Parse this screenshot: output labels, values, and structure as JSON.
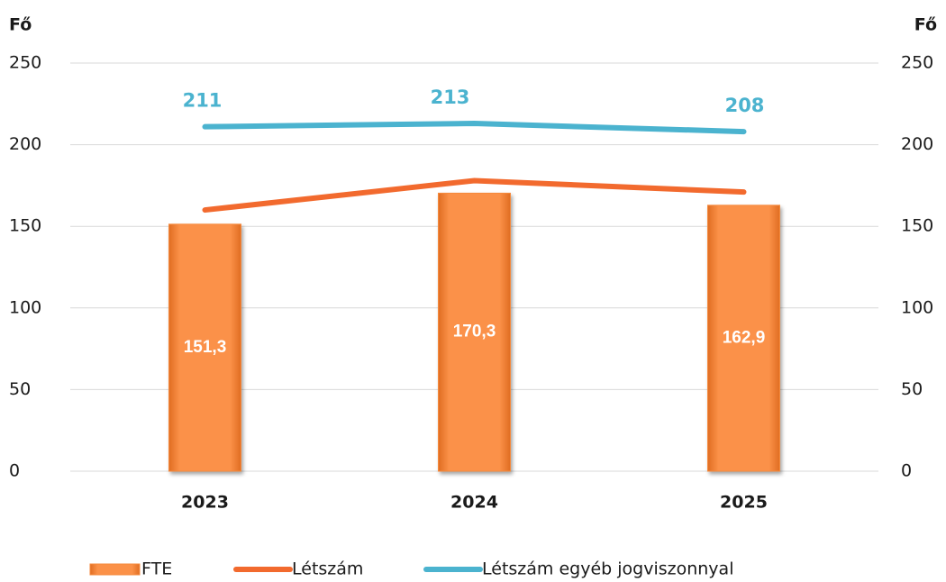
{
  "chart_data": {
    "type": "bar",
    "y_label": "Fő",
    "y2_label": "Fő",
    "categories": [
      "2023",
      "2024",
      "2025"
    ],
    "series": [
      {
        "name": "FTE",
        "type": "bar",
        "color": "#f58a3c",
        "values": [
          151.3,
          170.3,
          162.9
        ],
        "value_labels": [
          "151,3",
          "170,3",
          "162,9"
        ]
      },
      {
        "name": "Létszám",
        "type": "line",
        "color": "#f26a2e",
        "values": [
          160,
          178,
          171
        ]
      },
      {
        "name": "Létszám egyéb jogviszonnyal",
        "type": "line",
        "color": "#4bb3cf",
        "values": [
          211,
          213,
          208
        ],
        "labels": true
      }
    ],
    "ylim": [
      0,
      250
    ],
    "yticks": [
      0,
      50,
      100,
      150,
      200,
      250
    ],
    "y2lim": [
      0,
      250
    ],
    "y2ticks": [
      0,
      50,
      100,
      150,
      200,
      250
    ],
    "grid": true,
    "legend": "bottom"
  }
}
